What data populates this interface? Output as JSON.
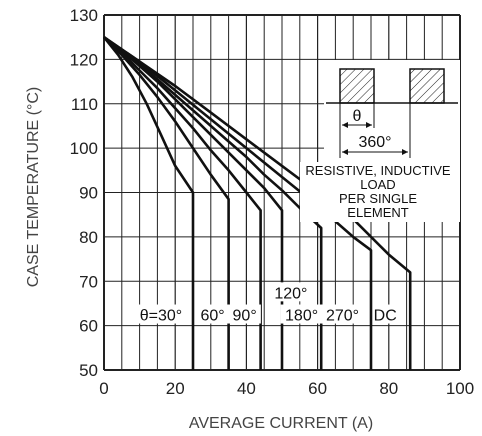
{
  "chart_data": {
    "type": "line",
    "xlabel": "AVERAGE CURRENT (A)",
    "ylabel": "CASE TEMPERATURE (°C)",
    "xlim": [
      0,
      100
    ],
    "ylim": [
      50,
      130
    ],
    "xticks": [
      "0",
      "20",
      "40",
      "60",
      "80",
      "100"
    ],
    "yticks": [
      "50",
      "60",
      "70",
      "80",
      "90",
      "100",
      "110",
      "120",
      "130"
    ],
    "grid": true,
    "series": [
      {
        "name": "θ=30°",
        "points": [
          [
            0,
            125
          ],
          [
            4,
            121
          ],
          [
            8,
            116
          ],
          [
            12,
            110
          ],
          [
            16,
            103
          ],
          [
            20,
            96
          ],
          [
            25,
            90
          ],
          [
            25,
            50
          ]
        ]
      },
      {
        "name": "60°",
        "points": [
          [
            0,
            125
          ],
          [
            5,
            121
          ],
          [
            10,
            116.5
          ],
          [
            15,
            111.5
          ],
          [
            20,
            106
          ],
          [
            25,
            100
          ],
          [
            30,
            94
          ],
          [
            35,
            88.5
          ],
          [
            35,
            50
          ]
        ]
      },
      {
        "name": "90°",
        "points": [
          [
            0,
            125
          ],
          [
            5,
            121.5
          ],
          [
            10,
            117.5
          ],
          [
            15,
            113.5
          ],
          [
            20,
            109
          ],
          [
            25,
            104.5
          ],
          [
            30,
            99.5
          ],
          [
            35,
            95
          ],
          [
            40,
            90
          ],
          [
            44,
            86
          ],
          [
            44,
            50
          ]
        ]
      },
      {
        "name": "120°",
        "points": [
          [
            0,
            125
          ],
          [
            5,
            122
          ],
          [
            10,
            118.5
          ],
          [
            15,
            115
          ],
          [
            20,
            111
          ],
          [
            25,
            107
          ],
          [
            30,
            103
          ],
          [
            35,
            99
          ],
          [
            40,
            95
          ],
          [
            45,
            91
          ],
          [
            50,
            86
          ],
          [
            50,
            50
          ]
        ]
      },
      {
        "name": "180°",
        "points": [
          [
            0,
            125
          ],
          [
            5,
            122
          ],
          [
            10,
            119
          ],
          [
            15,
            115.5
          ],
          [
            20,
            112
          ],
          [
            25,
            108.5
          ],
          [
            30,
            105
          ],
          [
            35,
            101.5
          ],
          [
            40,
            98
          ],
          [
            45,
            94
          ],
          [
            50,
            90.5
          ],
          [
            55,
            86.5
          ],
          [
            61,
            82
          ],
          [
            61,
            50
          ]
        ]
      },
      {
        "name": "270°",
        "points": [
          [
            0,
            125
          ],
          [
            10,
            119.5
          ],
          [
            20,
            113
          ],
          [
            30,
            106.5
          ],
          [
            40,
            100
          ],
          [
            50,
            93.5
          ],
          [
            60,
            87
          ],
          [
            70,
            80
          ],
          [
            75,
            77
          ],
          [
            75,
            50
          ]
        ]
      },
      {
        "name": "DC",
        "points": [
          [
            0,
            125
          ],
          [
            10,
            119.5
          ],
          [
            20,
            114
          ],
          [
            30,
            108
          ],
          [
            40,
            102
          ],
          [
            50,
            96
          ],
          [
            60,
            90
          ],
          [
            70,
            84
          ],
          [
            80,
            76
          ],
          [
            86,
            72
          ],
          [
            86,
            50
          ]
        ]
      }
    ],
    "curve_labels": [
      {
        "text": "θ=30°",
        "x": 16,
        "y": 62.5
      },
      {
        "text": "60°",
        "x": 30.5,
        "y": 62.5
      },
      {
        "text": "90°",
        "x": 39.5,
        "y": 62.5
      },
      {
        "text": "120°",
        "x": 52.5,
        "y": 67.5
      },
      {
        "text": "180°",
        "x": 55.5,
        "y": 62.5
      },
      {
        "text": "270°",
        "x": 67,
        "y": 62.5
      },
      {
        "text": "DC",
        "x": 79,
        "y": 62.5
      }
    ],
    "inset": {
      "theta_label": "θ",
      "period_label": "360°",
      "note_lines": [
        "RESISTIVE, INDUCTIVE",
        "LOAD",
        "PER SINGLE",
        "ELEMENT"
      ]
    }
  },
  "colors": {
    "curve": "#111111",
    "grid": "#222222",
    "text": "#222222"
  }
}
